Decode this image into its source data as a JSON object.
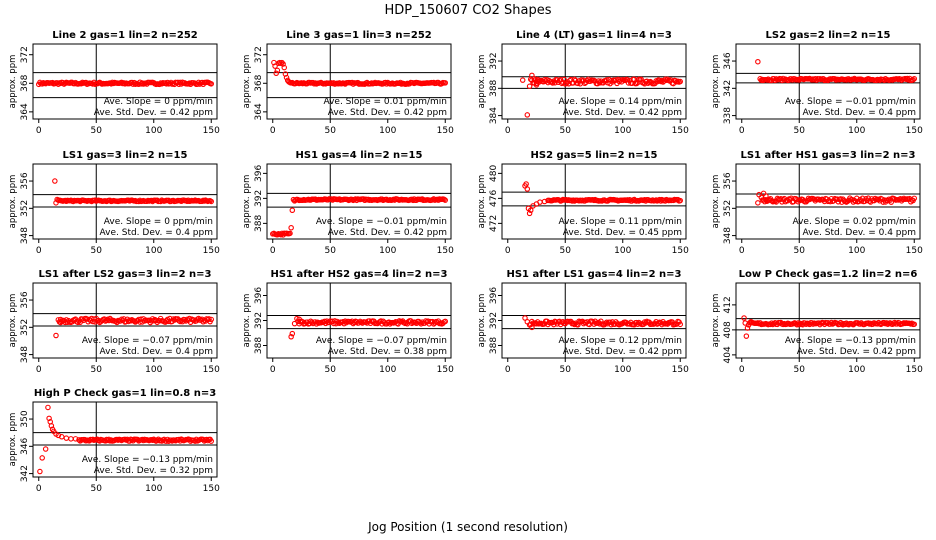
{
  "figure": {
    "title": "HDP_150607  CO2 Shapes",
    "xlabel": "Jog Position (1 second resolution)"
  },
  "colors": {
    "points": "#ff0000",
    "axis": "#000000"
  },
  "chart_data": [
    {
      "type": "scatter",
      "title": "Line 2 gas=1 lin=2 n=252",
      "ylabel": "approx. ppm",
      "xlim": [
        -5,
        155
      ],
      "ylim": [
        363,
        373.5
      ],
      "xticks": [
        0,
        50,
        100,
        150
      ],
      "yticks": [
        364,
        368,
        372
      ],
      "hlines": [
        366,
        369.5
      ],
      "vline": 50,
      "series": [
        {
          "name": "CO2",
          "shape": [
            {
              "x0": 0,
              "x1": 150,
              "y": 368,
              "noise": 0.15
            }
          ]
        }
      ],
      "slope_text": "Ave. Slope = 0  ppm/min",
      "std_text": "Ave. Std. Dev. = 0.42  ppm"
    },
    {
      "type": "scatter",
      "title": "Line 3 gas=1 lin=3 n=252",
      "ylabel": "approx. ppm",
      "xlim": [
        -5,
        155
      ],
      "ylim": [
        363,
        373.5
      ],
      "xticks": [
        0,
        50,
        100,
        150
      ],
      "yticks": [
        364,
        368,
        372
      ],
      "hlines": [
        366,
        369.5
      ],
      "vline": 50,
      "series": [
        {
          "name": "CO2",
          "points": [
            [
              1,
              370.9
            ],
            [
              2,
              370.4
            ],
            [
              3,
              369.4
            ],
            [
              4,
              369.8
            ],
            [
              5,
              370.8
            ],
            [
              6,
              370.9
            ],
            [
              7,
              370.8
            ],
            [
              8,
              370.9
            ],
            [
              9,
              370.7
            ],
            [
              10,
              370.2
            ],
            [
              11,
              369.3
            ],
            [
              12,
              368.8
            ],
            [
              13,
              368.4
            ],
            [
              14,
              368.2
            ],
            [
              15,
              368.1
            ]
          ],
          "shape": [
            {
              "x0": 16,
              "x1": 150,
              "y": 368,
              "noise": 0.12
            }
          ]
        }
      ],
      "slope_text": "Ave. Slope = 0.01  ppm/min",
      "std_text": "Ave. Std. Dev. = 0.42  ppm"
    },
    {
      "type": "scatter",
      "title": "Line 4 (LT) gas=1 lin=4 n=3",
      "ylabel": "approx. ppm",
      "xlim": [
        -5,
        155
      ],
      "ylim": [
        383.5,
        394.5
      ],
      "xticks": [
        0,
        50,
        100,
        150
      ],
      "yticks": [
        384,
        388,
        392
      ],
      "hlines": [
        388,
        389.7
      ],
      "vline": 50,
      "series": [
        {
          "name": "CO2",
          "points": [
            [
              13,
              389.2
            ],
            [
              17,
              384.1
            ],
            [
              19,
              388.3
            ],
            [
              21,
              389.9
            ],
            [
              23,
              389.4
            ],
            [
              25,
              388.5
            ],
            [
              27,
              388.9
            ]
          ],
          "shape": [
            {
              "x0": 20,
              "x1": 150,
              "y": 389,
              "noise": 0.35
            }
          ]
        }
      ],
      "slope_text": "Ave. Slope = 0.14  ppm/min",
      "std_text": "Ave. Std. Dev. = 0.42  ppm"
    },
    {
      "type": "scatter",
      "title": "LS2 gas=2 lin=2 n=15",
      "ylabel": "approx. ppm",
      "xlim": [
        -5,
        155
      ],
      "ylim": [
        337.5,
        348.5
      ],
      "xticks": [
        0,
        50,
        100,
        150
      ],
      "yticks": [
        338,
        342,
        346
      ],
      "hlines": [
        342.8,
        344.2
      ],
      "vline": 50,
      "series": [
        {
          "name": "CO2",
          "points": [
            [
              14,
              345.9
            ],
            [
              16,
              343.4
            ],
            [
              18,
              343.3
            ]
          ],
          "shape": [
            {
              "x0": 17,
              "x1": 150,
              "y": 343.3,
              "noise": 0.15
            }
          ]
        }
      ],
      "slope_text": "Ave. Slope = −0.01  ppm/min",
      "std_text": "Ave. Std. Dev. = 0.4  ppm"
    },
    {
      "type": "scatter",
      "title": "LS1 gas=3 lin=2 n=15",
      "ylabel": "approx. ppm",
      "xlim": [
        -5,
        155
      ],
      "ylim": [
        347.5,
        358.5
      ],
      "xticks": [
        0,
        50,
        100,
        150
      ],
      "yticks": [
        348,
        352,
        356
      ],
      "hlines": [
        352.2,
        354
      ],
      "vline": 50,
      "series": [
        {
          "name": "CO2",
          "points": [
            [
              14,
              356
            ],
            [
              15,
              352.8
            ],
            [
              16,
              353.3
            ],
            [
              17,
              353.2
            ]
          ],
          "shape": [
            {
              "x0": 18,
              "x1": 150,
              "y": 353.1,
              "noise": 0.1
            }
          ]
        }
      ],
      "slope_text": "Ave. Slope = 0  ppm/min",
      "std_text": "Ave. Std. Dev. = 0.4  ppm"
    },
    {
      "type": "scatter",
      "title": "HS1 gas=4 lin=2 n=15",
      "ylabel": "approx. ppm",
      "xlim": [
        -5,
        155
      ],
      "ylim": [
        385.5,
        397.5
      ],
      "xticks": [
        0,
        50,
        100,
        150
      ],
      "yticks": [
        388,
        392,
        396
      ],
      "hlines": [
        390.6,
        392.8
      ],
      "vline": 50,
      "series": [
        {
          "name": "CO2",
          "points": [
            [
              16,
              387.3
            ],
            [
              17,
              390.1
            ],
            [
              18,
              391.8
            ],
            [
              19,
              391.6
            ]
          ],
          "shape": [
            {
              "x0": 0,
              "x1": 15,
              "y": 386.3,
              "noise": 0.15
            },
            {
              "x0": 20,
              "x1": 150,
              "y": 391.8,
              "noise": 0.12
            }
          ]
        }
      ],
      "slope_text": "Ave. Slope = −0.01  ppm/min",
      "std_text": "Ave. Std. Dev. = 0.42  ppm"
    },
    {
      "type": "scatter",
      "title": "HS2 gas=5 lin=2 n=15",
      "ylabel": "approx. ppm",
      "xlim": [
        -5,
        155
      ],
      "ylim": [
        469.5,
        481.5
      ],
      "xticks": [
        0,
        50,
        100,
        150
      ],
      "yticks": [
        472,
        476,
        480
      ],
      "hlines": [
        474.8,
        477
      ],
      "vline": 50,
      "series": [
        {
          "name": "CO2",
          "points": [
            [
              15,
              478
            ],
            [
              16,
              478.3
            ],
            [
              17,
              477.5
            ],
            [
              18,
              474.4
            ],
            [
              19,
              473.6
            ],
            [
              20,
              474.1
            ],
            [
              22,
              474.8
            ],
            [
              25,
              475.1
            ],
            [
              28,
              475.4
            ],
            [
              32,
              475.5
            ]
          ],
          "shape": [
            {
              "x0": 35,
              "x1": 150,
              "y": 475.7,
              "noise": 0.12
            }
          ]
        }
      ],
      "slope_text": "Ave. Slope = 0.11  ppm/min",
      "std_text": "Ave. Std. Dev. = 0.45  ppm"
    },
    {
      "type": "scatter",
      "title": "LS1 after HS1 gas=3 lin=2 n=3",
      "ylabel": "approx. ppm",
      "xlim": [
        -5,
        155
      ],
      "ylim": [
        347.5,
        358.5
      ],
      "xticks": [
        0,
        50,
        100,
        150
      ],
      "yticks": [
        348,
        352,
        356
      ],
      "hlines": [
        352.2,
        354.1
      ],
      "vline": 50,
      "series": [
        {
          "name": "CO2",
          "points": [
            [
              14,
              352.8
            ],
            [
              15,
              354
            ],
            [
              17,
              353.6
            ],
            [
              19,
              354.2
            ],
            [
              21,
              353.8
            ],
            [
              23,
              353.2
            ]
          ],
          "shape": [
            {
              "x0": 18,
              "x1": 150,
              "y": 353.2,
              "noise": 0.3
            }
          ]
        }
      ],
      "slope_text": "Ave. Slope = 0.02  ppm/min",
      "std_text": "Ave. Std. Dev. = 0.4  ppm"
    },
    {
      "type": "scatter",
      "title": "LS1 after LS2 gas=3 lin=2 n=3",
      "ylabel": "approx. ppm",
      "xlim": [
        -5,
        155
      ],
      "ylim": [
        347.5,
        358.5
      ],
      "xticks": [
        0,
        50,
        100,
        150
      ],
      "yticks": [
        348,
        352,
        356
      ],
      "hlines": [
        352.2,
        354
      ],
      "vline": 50,
      "series": [
        {
          "name": "CO2",
          "points": [
            [
              15,
              350.8
            ],
            [
              17,
              353.1
            ],
            [
              19,
              352.7
            ]
          ],
          "shape": [
            {
              "x0": 18,
              "x1": 150,
              "y": 353,
              "noise": 0.3
            }
          ]
        }
      ],
      "slope_text": "Ave. Slope = −0.07  ppm/min",
      "std_text": "Ave. Std. Dev. = 0.4  ppm"
    },
    {
      "type": "scatter",
      "title": "HS1 after HS2 gas=4 lin=2 n=3",
      "ylabel": "approx. ppm",
      "xlim": [
        -5,
        155
      ],
      "ylim": [
        386,
        398
      ],
      "xticks": [
        0,
        50,
        100,
        150
      ],
      "yticks": [
        388,
        392,
        396
      ],
      "hlines": [
        390.7,
        392.8
      ],
      "vline": 50,
      "series": [
        {
          "name": "CO2",
          "points": [
            [
              16,
              389.4
            ],
            [
              17,
              389.9
            ],
            [
              19,
              391.5
            ],
            [
              21,
              392.3
            ],
            [
              23,
              392.2
            ]
          ],
          "shape": [
            {
              "x0": 22,
              "x1": 150,
              "y": 391.7,
              "noise": 0.25
            }
          ]
        }
      ],
      "slope_text": "Ave. Slope = −0.07  ppm/min",
      "std_text": "Ave. Std. Dev. = 0.38  ppm"
    },
    {
      "type": "scatter",
      "title": "HS1 after LS1 gas=4 lin=2 n=3",
      "ylabel": "approx. ppm",
      "xlim": [
        -5,
        155
      ],
      "ylim": [
        386,
        398
      ],
      "xticks": [
        0,
        50,
        100,
        150
      ],
      "yticks": [
        388,
        392,
        396
      ],
      "hlines": [
        390.7,
        392.8
      ],
      "vline": 50,
      "series": [
        {
          "name": "CO2",
          "points": [
            [
              15,
              392.4
            ],
            [
              17,
              391.8
            ],
            [
              19,
              391.3
            ],
            [
              21,
              390.9
            ],
            [
              24,
              391.6
            ]
          ],
          "shape": [
            {
              "x0": 20,
              "x1": 150,
              "y": 391.6,
              "noise": 0.3
            }
          ]
        }
      ],
      "slope_text": "Ave. Slope = 0.12  ppm/min",
      "std_text": "Ave. Std. Dev. = 0.42  ppm"
    },
    {
      "type": "scatter",
      "title": "Low P Check gas=1.2 lin=2 n=6",
      "ylabel": "approx. ppm",
      "xlim": [
        -5,
        155
      ],
      "ylim": [
        403.5,
        415.5
      ],
      "xticks": [
        0,
        50,
        100,
        150
      ],
      "yticks": [
        404,
        408,
        412
      ],
      "hlines": [
        408,
        409.8
      ],
      "vline": 50,
      "series": [
        {
          "name": "CO2",
          "points": [
            [
              2,
              409.9
            ],
            [
              3,
              409.1
            ],
            [
              4,
              407
            ],
            [
              5,
              408.3
            ],
            [
              6,
              408.8
            ],
            [
              8,
              409.3
            ]
          ],
          "shape": [
            {
              "x0": 7,
              "x1": 150,
              "y": 409,
              "noise": 0.18
            }
          ]
        }
      ],
      "slope_text": "Ave. Slope = −0.13  ppm/min",
      "std_text": "Ave. Std. Dev. = 0.42  ppm"
    },
    {
      "type": "scatter",
      "title": "High P Check gas=1 lin=0.8 n=3",
      "ylabel": "approx. ppm",
      "xlim": [
        -5,
        155
      ],
      "ylim": [
        341.5,
        352.5
      ],
      "xticks": [
        0,
        50,
        100,
        150
      ],
      "yticks": [
        342,
        346,
        350
      ],
      "hlines": [
        346.2,
        348
      ],
      "vline": 50,
      "series": [
        {
          "name": "CO2",
          "points": [
            [
              1,
              342.3
            ],
            [
              3,
              344.3
            ],
            [
              6,
              345.6
            ],
            [
              8,
              351.7
            ],
            [
              9,
              350.1
            ],
            [
              10,
              349.6
            ],
            [
              11,
              349
            ],
            [
              12,
              348.5
            ],
            [
              13,
              348.2
            ],
            [
              15,
              347.8
            ],
            [
              17,
              347.6
            ],
            [
              20,
              347.4
            ],
            [
              24,
              347.2
            ],
            [
              28,
              347.1
            ],
            [
              32,
              347.1
            ]
          ],
          "shape": [
            {
              "x0": 35,
              "x1": 150,
              "y": 346.9,
              "noise": 0.15
            }
          ]
        }
      ],
      "slope_text": "Ave. Slope = −0.13  ppm/min",
      "std_text": "Ave. Std. Dev. = 0.32  ppm"
    }
  ]
}
